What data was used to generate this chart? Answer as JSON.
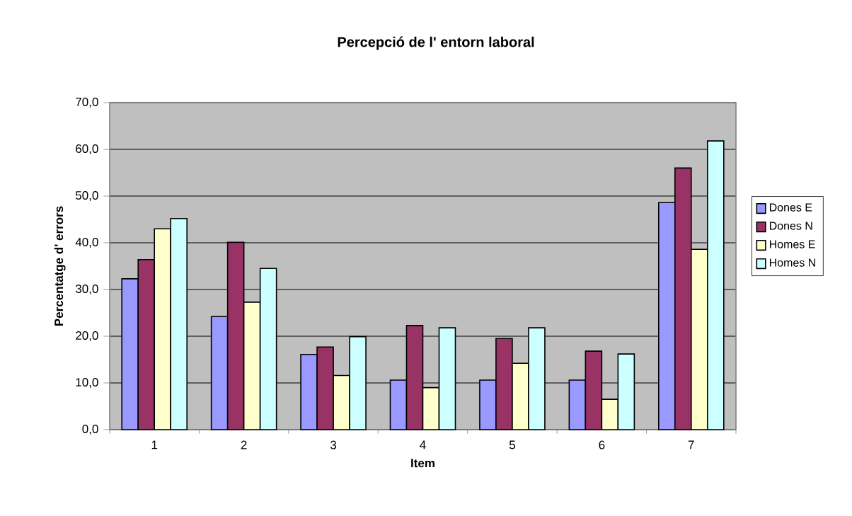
{
  "chart_data": {
    "type": "bar",
    "title": "Percepció de l' entorn laboral",
    "xlabel": "Item",
    "ylabel": "Percentatge d' errors",
    "categories": [
      "1",
      "2",
      "3",
      "4",
      "5",
      "6",
      "7"
    ],
    "series": [
      {
        "name": "Dones E",
        "color": "#9999ff",
        "values": [
          32.3,
          24.2,
          16.1,
          10.6,
          10.6,
          10.6,
          48.6
        ]
      },
      {
        "name": "Dones N",
        "color": "#993366",
        "values": [
          36.4,
          40.1,
          17.7,
          22.3,
          19.5,
          16.8,
          56.0
        ]
      },
      {
        "name": "Homes E",
        "color": "#ffffcc",
        "values": [
          43.0,
          27.3,
          11.6,
          9.0,
          14.2,
          6.5,
          38.6
        ]
      },
      {
        "name": "Homes N",
        "color": "#ccffff",
        "values": [
          45.2,
          34.5,
          19.9,
          21.8,
          21.8,
          16.2,
          61.8
        ]
      }
    ],
    "ylim": [
      0,
      70
    ],
    "yticks": [
      {
        "value": 0,
        "label": "0,0"
      },
      {
        "value": 10,
        "label": "10,0"
      },
      {
        "value": 20,
        "label": "20,0"
      },
      {
        "value": 30,
        "label": "30,0"
      },
      {
        "value": 40,
        "label": "40,0"
      },
      {
        "value": 50,
        "label": "50,0"
      },
      {
        "value": 60,
        "label": "60,0"
      },
      {
        "value": 70,
        "label": "70,0"
      }
    ],
    "grid": "y",
    "legend": "right"
  }
}
